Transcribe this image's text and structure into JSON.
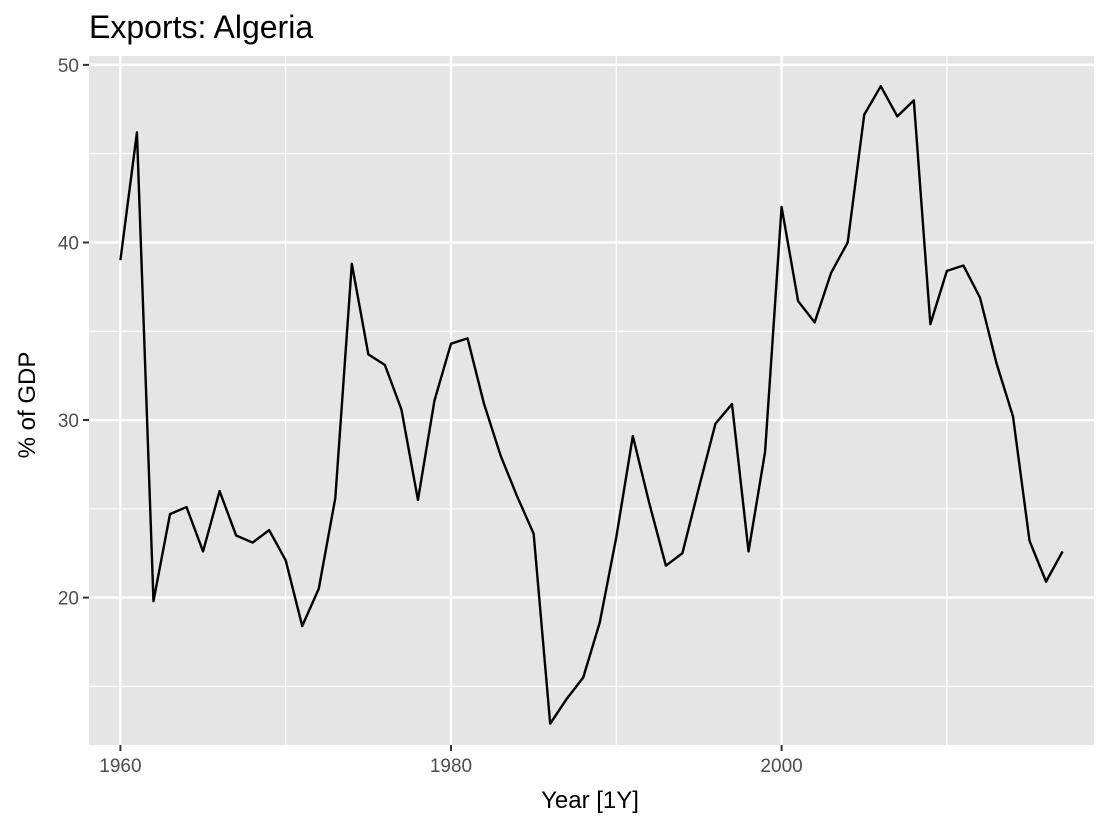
{
  "chart_data": {
    "type": "line",
    "title": "Exports: Algeria",
    "xlabel": "Year [1Y]",
    "ylabel": "% of GDP",
    "xlim": [
      1958.1,
      2018.9
    ],
    "ylim": [
      11.7,
      50.5
    ],
    "x_ticks": [
      1960,
      1980,
      2000
    ],
    "x_tick_labels": [
      "1960",
      "1980",
      "2000"
    ],
    "x_minor_ticks": [
      1970,
      1990,
      2010
    ],
    "y_ticks": [
      20,
      30,
      40,
      50
    ],
    "y_tick_labels": [
      "20",
      "30",
      "40",
      "50"
    ],
    "y_minor_ticks": [
      15,
      25,
      35,
      45
    ],
    "grid": true,
    "panel_color": "#e5e5e5",
    "grid_color": "#ffffff",
    "line_color": "#000000",
    "series": [
      {
        "name": "Exports",
        "x": [
          1960,
          1961,
          1962,
          1963,
          1964,
          1965,
          1966,
          1967,
          1968,
          1969,
          1970,
          1971,
          1972,
          1973,
          1974,
          1975,
          1976,
          1977,
          1978,
          1979,
          1980,
          1981,
          1982,
          1983,
          1984,
          1985,
          1986,
          1987,
          1988,
          1989,
          1990,
          1991,
          1992,
          1993,
          1994,
          1995,
          1996,
          1997,
          1998,
          1999,
          2000,
          2001,
          2002,
          2003,
          2004,
          2005,
          2006,
          2007,
          2008,
          2009,
          2010,
          2011,
          2012,
          2013,
          2014,
          2015,
          2016,
          2017
        ],
        "values": [
          39.0,
          46.2,
          19.8,
          24.7,
          25.1,
          22.6,
          26.0,
          23.5,
          23.1,
          23.8,
          22.1,
          18.4,
          20.5,
          25.6,
          38.8,
          33.7,
          33.1,
          30.6,
          25.5,
          31.1,
          34.3,
          34.6,
          30.9,
          28.0,
          25.7,
          23.6,
          12.9,
          14.3,
          15.5,
          18.6,
          23.4,
          29.1,
          25.3,
          21.8,
          22.5,
          26.2,
          29.8,
          30.9,
          22.6,
          28.2,
          42.0,
          36.7,
          35.5,
          38.3,
          40.0,
          47.2,
          48.8,
          47.1,
          48.0,
          35.4,
          38.4,
          38.7,
          36.9,
          33.2,
          30.2,
          23.2,
          20.9,
          22.6
        ]
      }
    ]
  }
}
